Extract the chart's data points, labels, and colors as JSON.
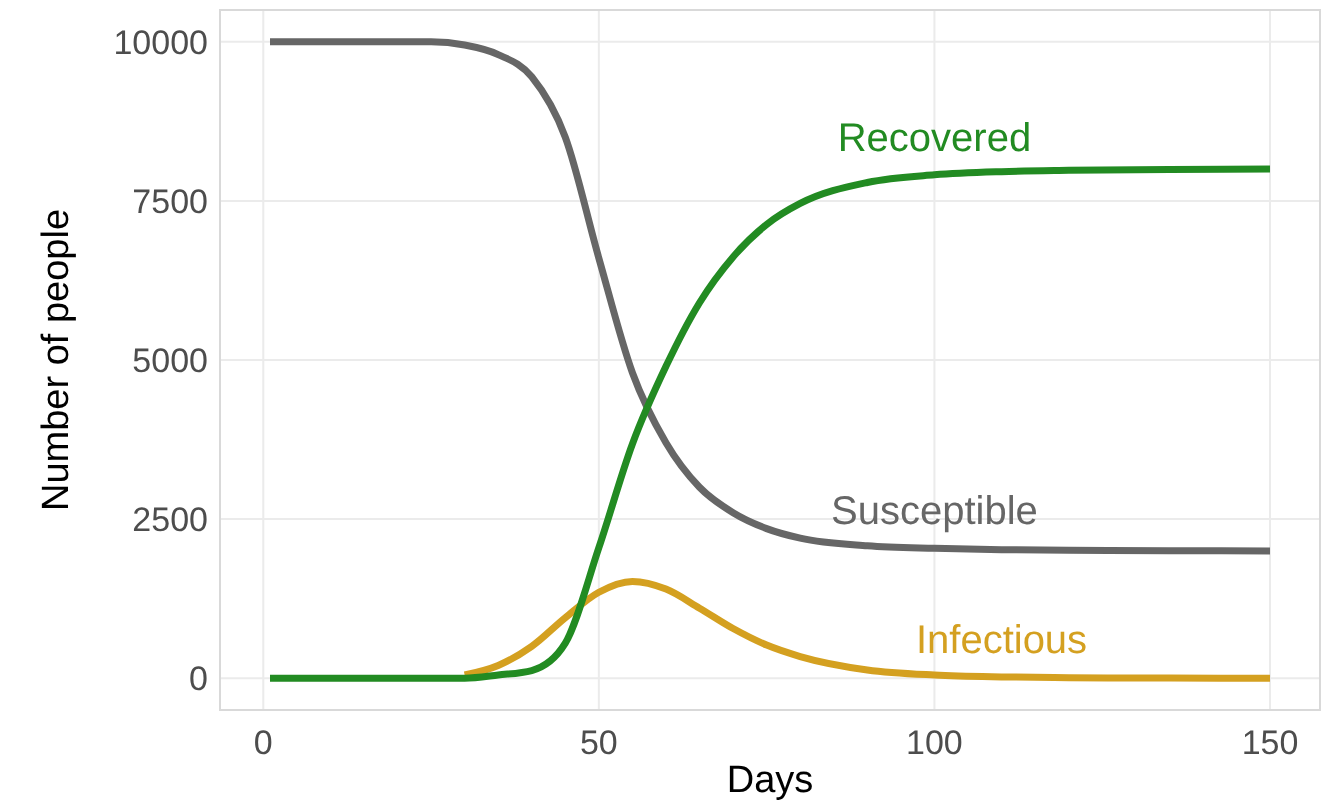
{
  "chart_data": {
    "type": "line",
    "xlabel": "Days",
    "ylabel": "Number of people",
    "x": [
      1,
      10,
      20,
      25,
      30,
      35,
      40,
      45,
      50,
      55,
      60,
      65,
      70,
      75,
      80,
      90,
      100,
      110,
      120,
      135,
      150
    ],
    "series": [
      {
        "name": "Susceptible",
        "color": "#666666",
        "values": [
          10000,
          10000,
          10000,
          10000,
          9950,
          9800,
          9450,
          8500,
          6600,
          4800,
          3700,
          3000,
          2600,
          2350,
          2200,
          2080,
          2040,
          2020,
          2010,
          2003,
          2000
        ]
      },
      {
        "name": "Infectious",
        "color": "#d4a020",
        "values": [
          null,
          null,
          null,
          null,
          50,
          200,
          500,
          950,
          1350,
          1520,
          1400,
          1100,
          780,
          520,
          340,
          130,
          50,
          20,
          8,
          2,
          0
        ]
      },
      {
        "name": "Recovered",
        "color": "#228b22",
        "values": [
          0,
          0,
          0,
          0,
          0,
          50,
          120,
          550,
          2050,
          3680,
          4900,
          5900,
          6620,
          7130,
          7460,
          7790,
          7910,
          7960,
          7980,
          7995,
          8000
        ]
      }
    ],
    "xlim": [
      -6.45,
      157.45
    ],
    "ylim": [
      -500,
      10500
    ],
    "xticks": [
      0,
      50,
      100,
      150
    ],
    "yticks": [
      0,
      2500,
      5000,
      7500,
      10000
    ],
    "grid": true,
    "legend": false,
    "line_style": "solid",
    "marker": "none"
  }
}
